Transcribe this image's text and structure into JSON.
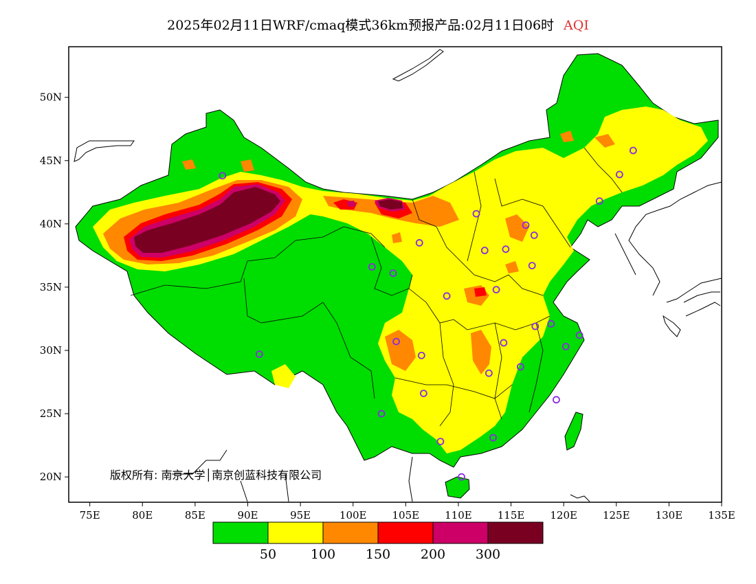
{
  "title": {
    "main": "2025年02月11日WRF/cmaq模式36km预报产品:02月11日06时",
    "product": "AQI",
    "product_color": "#e03030"
  },
  "copyright": "版权所有: 南京大学│南京创蓝科技有限公司",
  "axes": {
    "lon_labels": [
      "75E",
      "80E",
      "85E",
      "90E",
      "95E",
      "100E",
      "105E",
      "110E",
      "115E",
      "120E",
      "125E",
      "130E",
      "135E"
    ],
    "lat_labels": [
      "50N",
      "45N",
      "40N",
      "35N",
      "30N",
      "25N",
      "20N"
    ],
    "lon_range": [
      73,
      135
    ],
    "lat_range": [
      18,
      54
    ]
  },
  "legend": {
    "colors": [
      "#00dd00",
      "#ffff00",
      "#ff8800",
      "#ff0000",
      "#cc0066",
      "#7a0022"
    ],
    "labels": [
      "50",
      "100",
      "150",
      "200",
      "300"
    ]
  },
  "palette": {
    "land_good": "#00dd00",
    "ocean": "#ffffff",
    "city_marker": "#8a2be2"
  },
  "cities": [
    {
      "lon": 87.6,
      "lat": 43.8
    },
    {
      "lon": 91.1,
      "lat": 29.7
    },
    {
      "lon": 101.8,
      "lat": 36.6
    },
    {
      "lon": 103.8,
      "lat": 36.1
    },
    {
      "lon": 106.3,
      "lat": 38.5
    },
    {
      "lon": 111.7,
      "lat": 40.8
    },
    {
      "lon": 116.4,
      "lat": 39.9
    },
    {
      "lon": 117.2,
      "lat": 39.1
    },
    {
      "lon": 114.5,
      "lat": 38.0
    },
    {
      "lon": 112.5,
      "lat": 37.9
    },
    {
      "lon": 117.0,
      "lat": 36.7
    },
    {
      "lon": 113.6,
      "lat": 34.8
    },
    {
      "lon": 108.9,
      "lat": 34.3
    },
    {
      "lon": 104.1,
      "lat": 30.7
    },
    {
      "lon": 106.5,
      "lat": 29.6
    },
    {
      "lon": 106.7,
      "lat": 26.6
    },
    {
      "lon": 102.7,
      "lat": 25.0
    },
    {
      "lon": 108.3,
      "lat": 22.8
    },
    {
      "lon": 113.3,
      "lat": 23.1
    },
    {
      "lon": 110.3,
      "lat": 20.0
    },
    {
      "lon": 112.9,
      "lat": 28.2
    },
    {
      "lon": 114.3,
      "lat": 30.6
    },
    {
      "lon": 115.9,
      "lat": 28.7
    },
    {
      "lon": 117.3,
      "lat": 31.9
    },
    {
      "lon": 118.8,
      "lat": 32.1
    },
    {
      "lon": 120.2,
      "lat": 30.3
    },
    {
      "lon": 121.5,
      "lat": 31.2
    },
    {
      "lon": 119.3,
      "lat": 26.1
    },
    {
      "lon": 123.4,
      "lat": 41.8
    },
    {
      "lon": 125.3,
      "lat": 43.9
    },
    {
      "lon": 126.6,
      "lat": 45.8
    }
  ]
}
